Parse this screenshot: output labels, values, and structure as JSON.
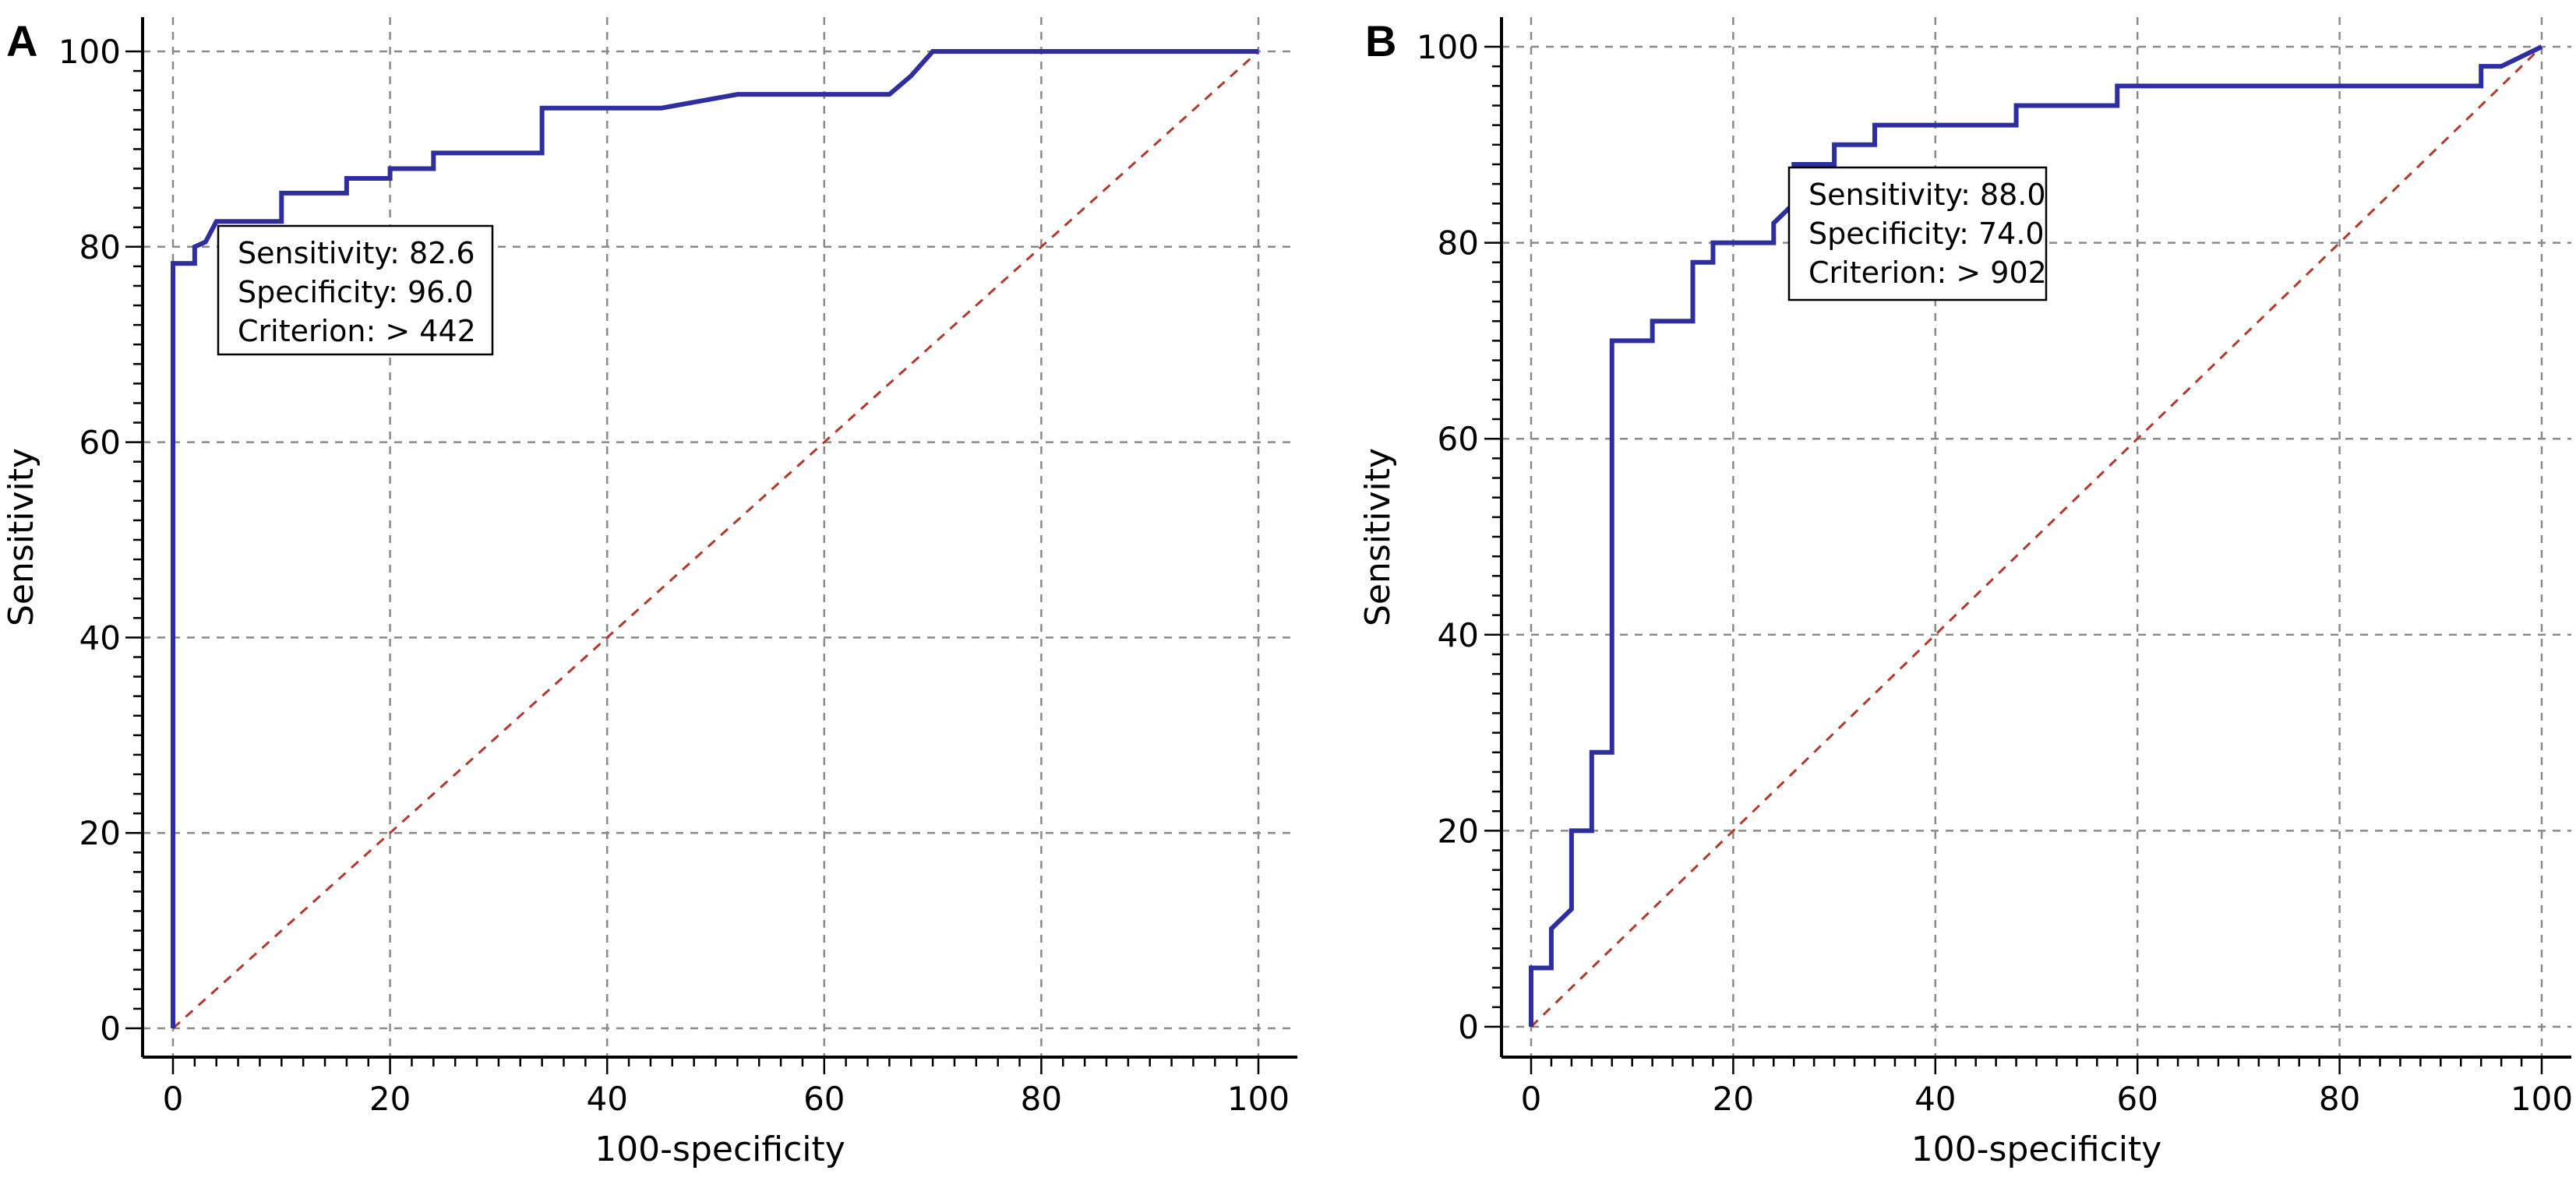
{
  "chart_data": [
    {
      "panel_label": "A",
      "type": "line",
      "xlabel": "100-specificity",
      "ylabel": "Sensitivity",
      "xlim": [
        0,
        100
      ],
      "ylim": [
        0,
        100
      ],
      "xticks": [
        0,
        20,
        40,
        60,
        80,
        100
      ],
      "yticks": [
        0,
        20,
        40,
        60,
        80,
        100
      ],
      "grid": true,
      "colors": {
        "roc": "#2e2e9e",
        "reference": "#b03a2e",
        "grid": "#8a8a8a"
      },
      "series": [
        {
          "values": [
            [
              0,
              0
            ],
            [
              0,
              78.3
            ],
            [
              2,
              78.3
            ],
            [
              2,
              80
            ],
            [
              3,
              80.5
            ],
            [
              4,
              82.6
            ],
            [
              10,
              82.6
            ],
            [
              10,
              85.5
            ],
            [
              16,
              85.5
            ],
            [
              16,
              87
            ],
            [
              20,
              87
            ],
            [
              20,
              88
            ],
            [
              24,
              88
            ],
            [
              24,
              89.6
            ],
            [
              34,
              89.6
            ],
            [
              34,
              94.2
            ],
            [
              45,
              94.2
            ],
            [
              48,
              94.8
            ],
            [
              52,
              95.6
            ],
            [
              66,
              95.6
            ],
            [
              68,
              97.5
            ],
            [
              70,
              100
            ],
            [
              100,
              100
            ]
          ]
        },
        {
          "values": [
            [
              0,
              0
            ],
            [
              100,
              100
            ]
          ]
        }
      ],
      "annotation": {
        "lines": [
          "Sensitivity: 82.6",
          "Specificity: 96.0",
          "Criterion: > 442"
        ]
      }
    },
    {
      "panel_label": "B",
      "type": "line",
      "xlabel": "100-specificity",
      "ylabel": "Sensitivity",
      "xlim": [
        0,
        100
      ],
      "ylim": [
        0,
        100
      ],
      "xticks": [
        0,
        20,
        40,
        60,
        80,
        100
      ],
      "yticks": [
        0,
        20,
        40,
        60,
        80,
        100
      ],
      "grid": true,
      "colors": {
        "roc": "#2e2e9e",
        "reference": "#b03a2e",
        "grid": "#8a8a8a"
      },
      "series": [
        {
          "values": [
            [
              0,
              0
            ],
            [
              0,
              6
            ],
            [
              2,
              6
            ],
            [
              2,
              10
            ],
            [
              4,
              12
            ],
            [
              4,
              20
            ],
            [
              6,
              20
            ],
            [
              6,
              28
            ],
            [
              8,
              28
            ],
            [
              8,
              70
            ],
            [
              12,
              70
            ],
            [
              12,
              72
            ],
            [
              16,
              72
            ],
            [
              16,
              78
            ],
            [
              18,
              78
            ],
            [
              18,
              80
            ],
            [
              24,
              80
            ],
            [
              24,
              82
            ],
            [
              26,
              84
            ],
            [
              26,
              88
            ],
            [
              30,
              88
            ],
            [
              30,
              90
            ],
            [
              34,
              90
            ],
            [
              34,
              92
            ],
            [
              48,
              92
            ],
            [
              48,
              94
            ],
            [
              58,
              94
            ],
            [
              58,
              96
            ],
            [
              94,
              96
            ],
            [
              94,
              98
            ],
            [
              96,
              98
            ],
            [
              100,
              100
            ]
          ]
        },
        {
          "values": [
            [
              0,
              0
            ],
            [
              100,
              100
            ]
          ]
        }
      ],
      "annotation": {
        "lines": [
          "Sensitivity: 88.0",
          "Specificity: 74.0",
          "Criterion: > 902"
        ]
      }
    }
  ]
}
